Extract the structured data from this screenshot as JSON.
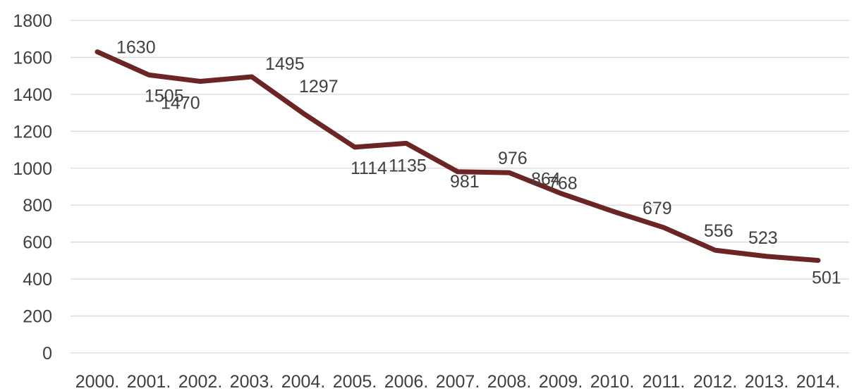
{
  "chart_data": {
    "type": "line",
    "categories": [
      "2000.",
      "2001.",
      "2002.",
      "2003.",
      "2004.",
      "2005.",
      "2006.",
      "2007.",
      "2008.",
      "2009.",
      "2010.",
      "2011.",
      "2012.",
      "2013.",
      "2014."
    ],
    "series": [
      {
        "values": [
          1630,
          1505,
          1470,
          1495,
          1297,
          1114,
          1135,
          981,
          976,
          864,
          768,
          679,
          556,
          523,
          501
        ],
        "color": "#6b2525"
      }
    ],
    "yticks": [
      "0",
      "200",
      "400",
      "600",
      "800",
      "1000",
      "1200",
      "1400",
      "1600",
      "1800"
    ],
    "ylim": [
      0,
      1800
    ],
    "grid": true,
    "legend": "none",
    "title": "",
    "xlabel": "",
    "ylabel": ""
  }
}
